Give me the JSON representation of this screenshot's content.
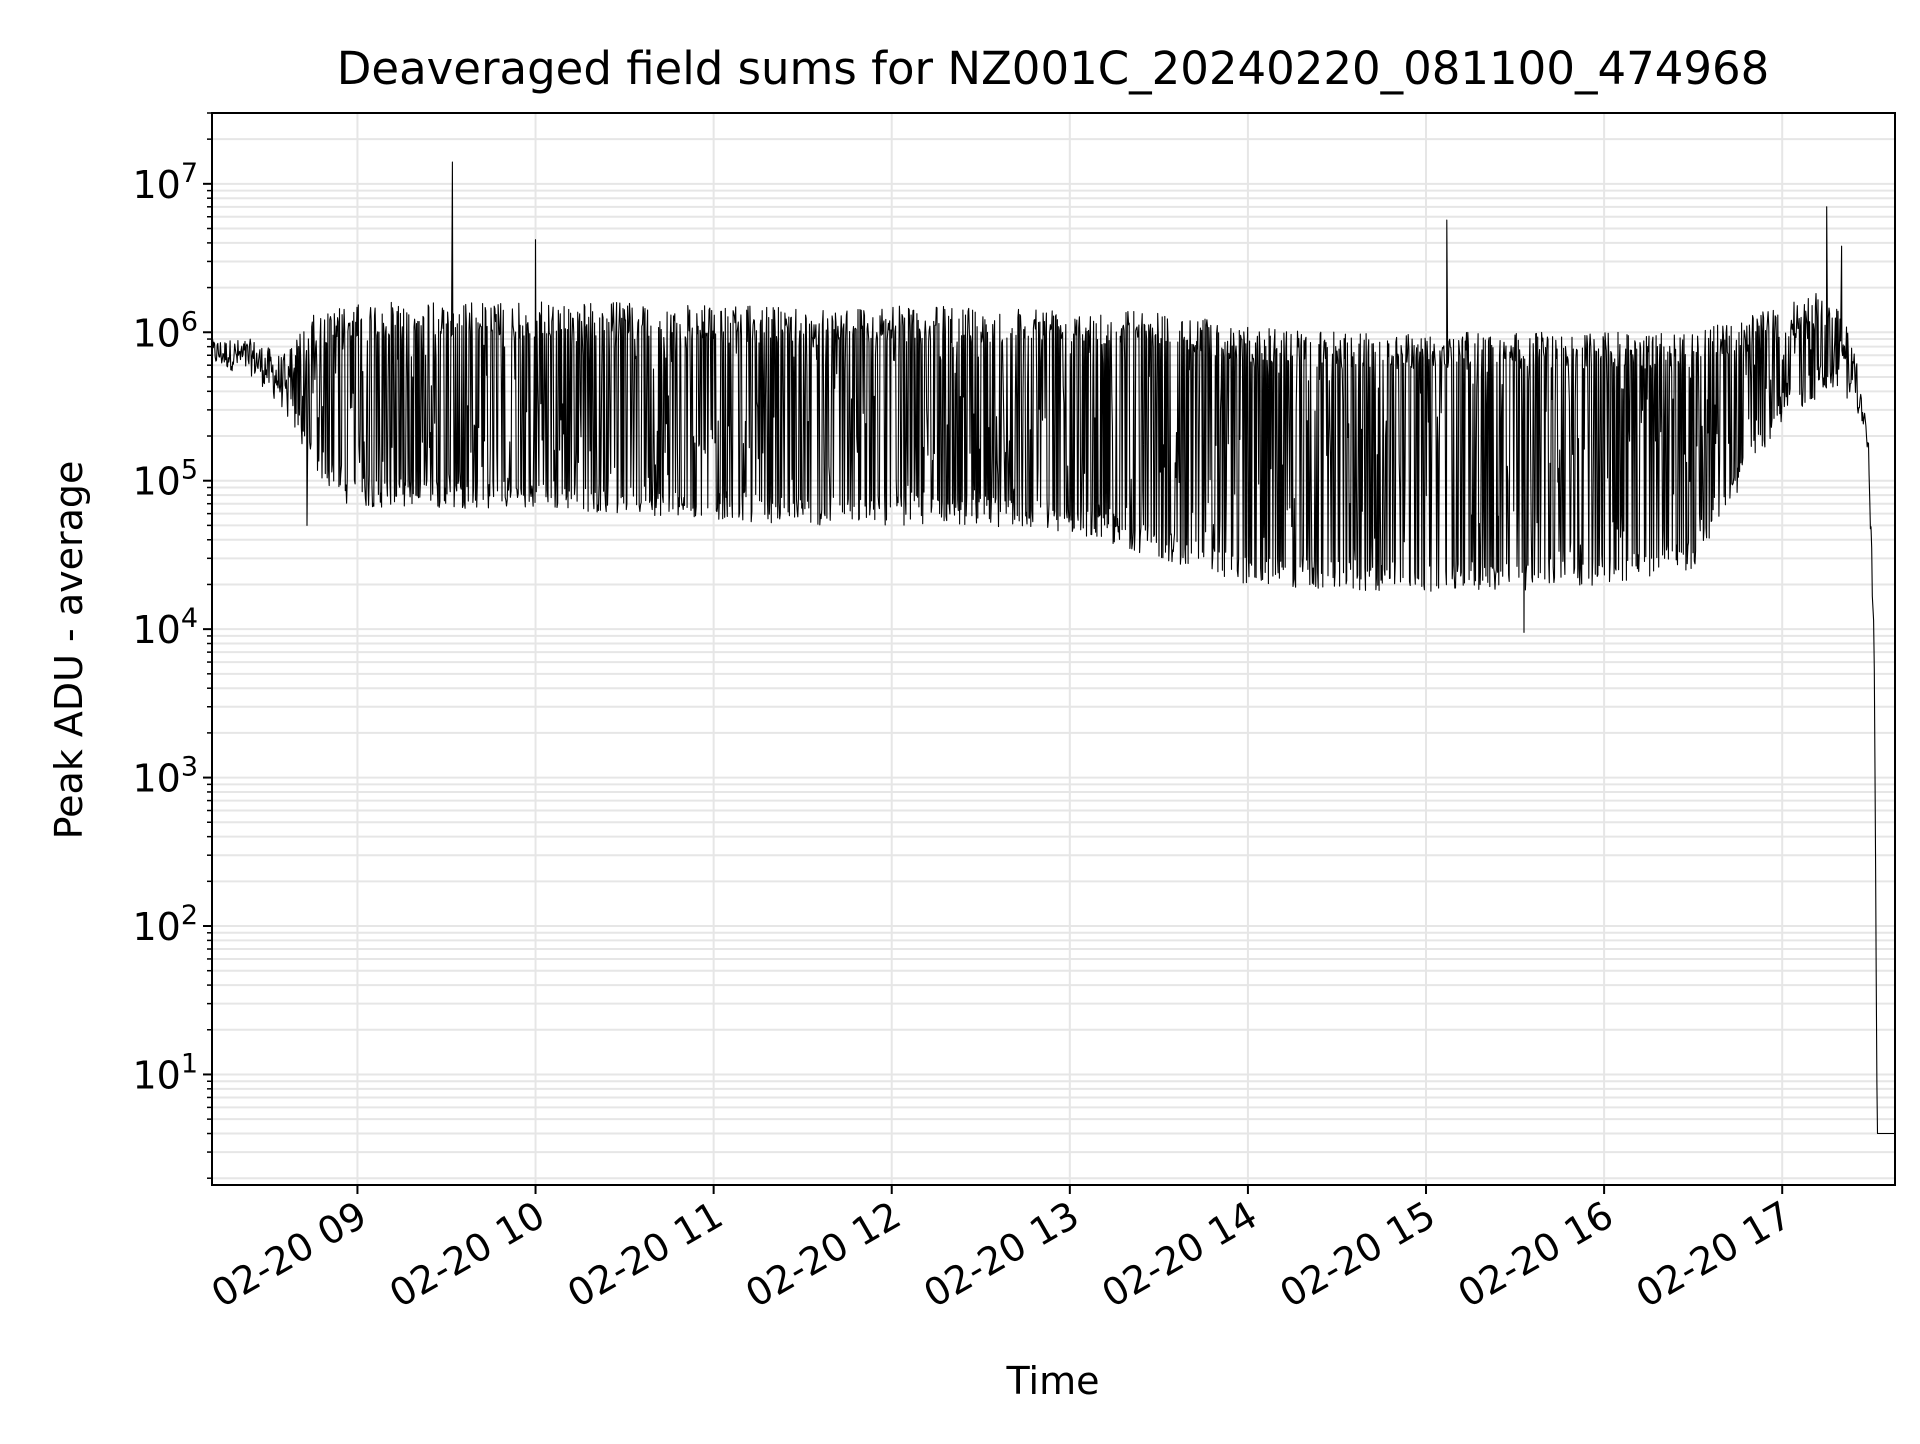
{
  "chart_data": {
    "type": "line",
    "title": "Deaveraged field sums for NZ001C_20240220_081100_474968",
    "xlabel": "Time",
    "ylabel": "Peak ADU - average",
    "yscale": "log",
    "grid": true,
    "grid_color": "#e6e6e6",
    "line_color": "#000000",
    "xlim": [
      "2024-02-20 08:11",
      "2024-02-20 17:38"
    ],
    "ylim": [
      1.8,
      30000000
    ],
    "x_ticks": [
      {
        "value": "2024-02-20 09:00",
        "label": "02-20 09"
      },
      {
        "value": "2024-02-20 10:00",
        "label": "02-20 10"
      },
      {
        "value": "2024-02-20 11:00",
        "label": "02-20 11"
      },
      {
        "value": "2024-02-20 12:00",
        "label": "02-20 12"
      },
      {
        "value": "2024-02-20 13:00",
        "label": "02-20 13"
      },
      {
        "value": "2024-02-20 14:00",
        "label": "02-20 14"
      },
      {
        "value": "2024-02-20 15:00",
        "label": "02-20 15"
      },
      {
        "value": "2024-02-20 16:00",
        "label": "02-20 16"
      },
      {
        "value": "2024-02-20 17:00",
        "label": "02-20 17"
      }
    ],
    "y_ticks": [
      {
        "value": 10,
        "base": "10",
        "exp": "1"
      },
      {
        "value": 100,
        "base": "10",
        "exp": "2"
      },
      {
        "value": 1000,
        "base": "10",
        "exp": "3"
      },
      {
        "value": 10000,
        "base": "10",
        "exp": "4"
      },
      {
        "value": 100000,
        "base": "10",
        "exp": "5"
      },
      {
        "value": 1000000,
        "base": "10",
        "exp": "6"
      },
      {
        "value": 10000000,
        "base": "10",
        "exp": "7"
      }
    ],
    "series": [
      {
        "name": "",
        "x": [
          "2024-02-20 08:11",
          "2024-02-20 08:25",
          "2024-02-20 08:35",
          "2024-02-20 08:45",
          "2024-02-20 08:55",
          "2024-02-20 09:10",
          "2024-02-20 09:30",
          "2024-02-20 09:45",
          "2024-02-20 10:00",
          "2024-02-20 10:30",
          "2024-02-20 11:00",
          "2024-02-20 11:30",
          "2024-02-20 12:00",
          "2024-02-20 12:30",
          "2024-02-20 13:00",
          "2024-02-20 13:30",
          "2024-02-20 14:00",
          "2024-02-20 14:30",
          "2024-02-20 15:00",
          "2024-02-20 15:30",
          "2024-02-20 16:00",
          "2024-02-20 16:30",
          "2024-02-20 17:00",
          "2024-02-20 17:15",
          "2024-02-20 17:25",
          "2024-02-20 17:29",
          "2024-02-20 17:31",
          "2024-02-20 17:32",
          "2024-02-20 17:38"
        ],
        "y_upper": [
          900000,
          900000,
          700000,
          1300000,
          1500000,
          1600000,
          1600000,
          1600000,
          1600000,
          1600000,
          1500000,
          1500000,
          1500000,
          1500000,
          1500000,
          1400000,
          1100000,
          1000000,
          1000000,
          1000000,
          1000000,
          1000000,
          1500000,
          2000000,
          800000,
          200000,
          10000,
          4,
          4
        ],
        "y_lower": [
          600000,
          500000,
          300000,
          120000,
          70000,
          65000,
          65000,
          65000,
          65000,
          60000,
          55000,
          50000,
          50000,
          50000,
          45000,
          30000,
          20000,
          18000,
          18000,
          18000,
          20000,
          25000,
          250000,
          400000,
          300000,
          150000,
          5000,
          4,
          4
        ],
        "spikes": [
          {
            "x": "2024-02-20 09:32",
            "y": 14000000
          },
          {
            "x": "2024-02-20 10:00",
            "y": 4200000
          },
          {
            "x": "2024-02-20 15:07",
            "y": 5700000
          },
          {
            "x": "2024-02-20 17:15",
            "y": 7000000
          },
          {
            "x": "2024-02-20 17:20",
            "y": 3800000
          },
          {
            "x": "2024-02-20 08:43",
            "y": 50000
          },
          {
            "x": "2024-02-20 15:33",
            "y": 9500
          }
        ]
      }
    ]
  }
}
